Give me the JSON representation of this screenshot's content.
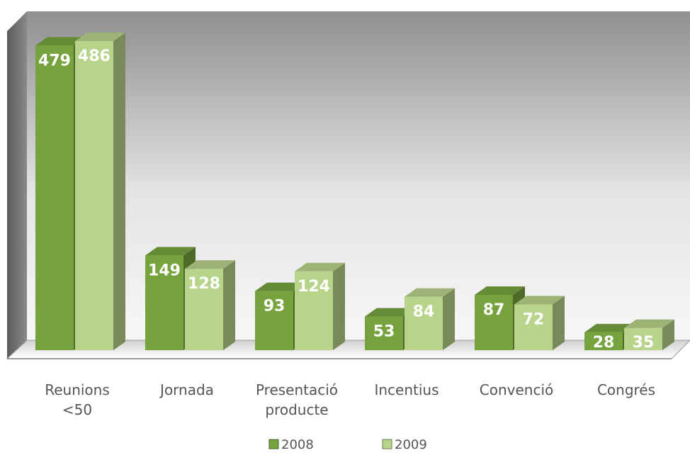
{
  "chart_data": {
    "type": "bar",
    "title": "",
    "xlabel": "",
    "ylabel": "",
    "categories": [
      [
        "Reunions",
        "<50"
      ],
      [
        "Jornada"
      ],
      [
        "Presentació",
        "producte"
      ],
      [
        "Incentius"
      ],
      [
        "Convenció"
      ],
      [
        "Congrés"
      ]
    ],
    "series": [
      {
        "name": "2008",
        "values": [
          479,
          149,
          93,
          53,
          87,
          28
        ],
        "color": "#77a33f"
      },
      {
        "name": "2009",
        "values": [
          486,
          128,
          124,
          84,
          72,
          35
        ],
        "color": "#b8d38a"
      }
    ],
    "ylim": [
      0,
      486
    ],
    "grid": false,
    "legend_position": "bottom",
    "style": "3d-clustered-column"
  }
}
